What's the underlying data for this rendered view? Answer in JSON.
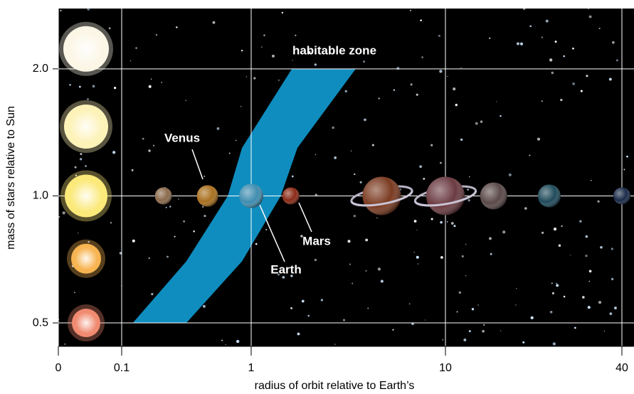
{
  "chart_data": {
    "type": "scatter",
    "xlabel": "radius of orbit relative to Earth’s",
    "ylabel": "mass of stars relative to Sun",
    "xlim": [
      0,
      45
    ],
    "ylim": [
      0.44,
      2.78
    ],
    "ylog": true,
    "xticks": [
      0,
      0.1,
      1,
      10,
      40
    ],
    "yticks": [
      {
        "value": 0.5,
        "label": "0.5"
      },
      {
        "value": 1.0,
        "label": "1.0"
      },
      {
        "value": 2.0,
        "label": "2.0"
      }
    ],
    "grid": true,
    "background": "#000000",
    "stars": {
      "values": [
        2.23,
        1.46,
        1.0,
        0.71,
        0.5
      ],
      "colors": [
        "#fbf6e6",
        "#fdf2b8",
        "#fbe97a",
        "#f7b451",
        "#f08a70"
      ]
    },
    "planets": {
      "x": [
        0.21,
        0.46,
        1.0,
        1.6,
        4.7,
        10,
        14.6,
        22.6,
        40
      ],
      "y": [
        1.0,
        1.0,
        1.0,
        1.0,
        1.0,
        1.0,
        1.0,
        1.0,
        1.0
      ],
      "colors": [
        "#8a6a4a",
        "#a9701e",
        "#3f8db0",
        "#8a2a16",
        "#7a3a20",
        "#6a3a40",
        "#5a4848",
        "#1f4a5a",
        "#1a2a48"
      ],
      "labels": [
        null,
        "Venus",
        "Earth",
        "Mars",
        null,
        null,
        null,
        null,
        null
      ]
    },
    "habitable_zone": {
      "label": "habitable zone",
      "color": "#0f8dbf",
      "y": [
        0.5,
        0.7,
        1.0,
        1.3,
        2.0
      ],
      "inner": [
        0.122,
        0.316,
        0.66,
        0.85,
        1.62
      ],
      "outer": [
        0.316,
        0.85,
        1.42,
        1.73,
        3.45
      ]
    }
  }
}
